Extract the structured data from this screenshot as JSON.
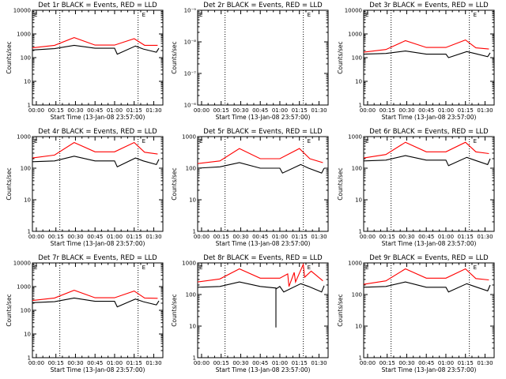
{
  "page": {
    "background": "#ffffff"
  },
  "colors": {
    "events": "#000000",
    "lld": "#ff0000",
    "frame": "#000000"
  },
  "chart_data": [
    {
      "type": "line",
      "title": "Det 1r BLACK = Events, RED = LLD",
      "xlabel": "Start Time (13-Jan-08 23:57:00)",
      "ylabel": "Counts/sec",
      "x_ticks": [
        "00:00",
        "00:15",
        "00:30",
        "00:45",
        "01:00",
        "01:15",
        "01:30"
      ],
      "x_range_min": [
        -3,
        97
      ],
      "y_scale": "log",
      "ylim": [
        1,
        10000
      ],
      "y_ticks": [
        "1",
        "10",
        "100",
        "1000",
        "10000"
      ],
      "dotted_lines_min": [
        18,
        78
      ],
      "marker": "E",
      "marker_x_min": 81,
      "series": [
        {
          "color": "#ff0000",
          "points": [
            [
              -3,
              260
            ],
            [
              14,
              330
            ],
            [
              29,
              700
            ],
            [
              45,
              340
            ],
            [
              60,
              340
            ],
            [
              75,
              630
            ],
            [
              83,
              330
            ],
            [
              93,
              330
            ]
          ]
        },
        {
          "color": "#000000",
          "points": [
            [
              -3,
              210
            ],
            [
              14,
              240
            ],
            [
              29,
              330
            ],
            [
              45,
              250
            ],
            [
              60,
              250
            ],
            [
              62,
              140
            ],
            [
              76,
              310
            ],
            [
              82,
              230
            ],
            [
              92,
              170
            ],
            [
              94,
              250
            ]
          ]
        }
      ]
    },
    {
      "type": "line",
      "title": "Det 2r BLACK = Events, RED = LLD",
      "xlabel": "Start Time (13-Jan-08 23:57:00)",
      "ylabel": "Counts/sec",
      "x_ticks": [
        "00:00",
        "00:15",
        "00:30",
        "00:45",
        "01:00",
        "01:15",
        "01:30"
      ],
      "x_range_min": [
        -3,
        97
      ],
      "y_scale": "log",
      "ylim": [
        1e-06,
        1e-09
      ],
      "y_ticks": [
        "10⁻⁶",
        "10⁻⁷",
        "10⁻⁸",
        "10⁻⁹"
      ],
      "dotted_lines_min": [
        18,
        78
      ],
      "marker": "E",
      "marker_x_min": 81,
      "series": []
    },
    {
      "type": "line",
      "title": "Det 3r BLACK = Events, RED = LLD",
      "xlabel": "Start Time (13-Jan-08 23:57:00)",
      "ylabel": "Counts/sec",
      "x_ticks": [
        "00:00",
        "00:15",
        "00:30",
        "00:45",
        "01:00",
        "01:15",
        "01:30"
      ],
      "x_range_min": [
        -3,
        97
      ],
      "y_scale": "log",
      "ylim": [
        1,
        10000
      ],
      "y_ticks": [
        "1",
        "10",
        "100",
        "1000",
        "10000"
      ],
      "dotted_lines_min": [
        18,
        78
      ],
      "marker": "E",
      "marker_x_min": 81,
      "series": [
        {
          "color": "#ff0000",
          "points": [
            [
              -3,
              170
            ],
            [
              14,
              220
            ],
            [
              29,
              520
            ],
            [
              45,
              270
            ],
            [
              60,
              270
            ],
            [
              75,
              560
            ],
            [
              83,
              260
            ],
            [
              93,
              230
            ]
          ]
        },
        {
          "color": "#000000",
          "points": [
            [
              -3,
              140
            ],
            [
              14,
              150
            ],
            [
              29,
              190
            ],
            [
              45,
              140
            ],
            [
              60,
              140
            ],
            [
              62,
              100
            ],
            [
              76,
              180
            ],
            [
              82,
              150
            ],
            [
              92,
              110
            ],
            [
              94,
              160
            ]
          ]
        }
      ]
    },
    {
      "type": "line",
      "title": "Det 4r BLACK = Events, RED = LLD",
      "xlabel": "Start Time (13-Jan-08 23:57:00)",
      "ylabel": "Counts/sec",
      "x_ticks": [
        "00:00",
        "00:15",
        "00:30",
        "00:45",
        "01:00",
        "01:15",
        "01:30"
      ],
      "x_range_min": [
        -3,
        97
      ],
      "y_scale": "log",
      "ylim": [
        1,
        1000
      ],
      "y_ticks": [
        "1",
        "10",
        "100",
        "1000"
      ],
      "dotted_lines_min": [
        18,
        78
      ],
      "marker": "E",
      "marker_x_min": 81,
      "series": [
        {
          "color": "#ff0000",
          "points": [
            [
              -3,
              210
            ],
            [
              14,
              260
            ],
            [
              29,
              650
            ],
            [
              45,
              330
            ],
            [
              60,
              330
            ],
            [
              75,
              650
            ],
            [
              83,
              320
            ],
            [
              93,
              280
            ]
          ]
        },
        {
          "color": "#000000",
          "points": [
            [
              -3,
              160
            ],
            [
              14,
              170
            ],
            [
              29,
              240
            ],
            [
              45,
              170
            ],
            [
              60,
              170
            ],
            [
              62,
              110
            ],
            [
              76,
              210
            ],
            [
              82,
              170
            ],
            [
              92,
              130
            ],
            [
              94,
              190
            ]
          ]
        }
      ]
    },
    {
      "type": "line",
      "title": "Det 5r BLACK = Events, RED = LLD",
      "xlabel": "Start Time (13-Jan-08 23:57:00)",
      "ylabel": "Counts/sec",
      "x_ticks": [
        "00:00",
        "00:15",
        "00:30",
        "00:45",
        "01:00",
        "01:15",
        "01:30"
      ],
      "x_range_min": [
        -3,
        97
      ],
      "y_scale": "log",
      "ylim": [
        1,
        1000
      ],
      "y_ticks": [
        "1",
        "10",
        "100",
        "1000"
      ],
      "dotted_lines_min": [
        18,
        78
      ],
      "marker": "E",
      "marker_x_min": 81,
      "series": [
        {
          "color": "#ff0000",
          "points": [
            [
              -3,
              140
            ],
            [
              14,
              170
            ],
            [
              29,
              420
            ],
            [
              45,
              200
            ],
            [
              60,
              200
            ],
            [
              75,
              420
            ],
            [
              83,
              200
            ],
            [
              93,
              150
            ]
          ]
        },
        {
          "color": "#000000",
          "points": [
            [
              -3,
              100
            ],
            [
              14,
              110
            ],
            [
              29,
              150
            ],
            [
              45,
              100
            ],
            [
              60,
              100
            ],
            [
              62,
              70
            ],
            [
              76,
              130
            ],
            [
              82,
              100
            ],
            [
              92,
              70
            ],
            [
              94,
              100
            ]
          ]
        }
      ]
    },
    {
      "type": "line",
      "title": "Det 6r BLACK = Events, RED = LLD",
      "xlabel": "Start Time (13-Jan-08 23:57:00)",
      "ylabel": "Counts/sec",
      "x_ticks": [
        "00:00",
        "00:15",
        "00:30",
        "00:45",
        "01:00",
        "01:15",
        "01:30"
      ],
      "x_range_min": [
        -3,
        97
      ],
      "y_scale": "log",
      "ylim": [
        1,
        1000
      ],
      "y_ticks": [
        "1",
        "10",
        "100",
        "1000"
      ],
      "dotted_lines_min": [
        18,
        78
      ],
      "marker": "E",
      "marker_x_min": 81,
      "series": [
        {
          "color": "#ff0000",
          "points": [
            [
              -3,
              210
            ],
            [
              14,
              270
            ],
            [
              29,
              660
            ],
            [
              45,
              330
            ],
            [
              60,
              330
            ],
            [
              75,
              660
            ],
            [
              83,
              330
            ],
            [
              93,
              290
            ]
          ]
        },
        {
          "color": "#000000",
          "points": [
            [
              -3,
              170
            ],
            [
              14,
              180
            ],
            [
              29,
              250
            ],
            [
              45,
              180
            ],
            [
              60,
              180
            ],
            [
              62,
              120
            ],
            [
              76,
              220
            ],
            [
              82,
              180
            ],
            [
              92,
              130
            ],
            [
              94,
              200
            ]
          ]
        }
      ]
    },
    {
      "type": "line",
      "title": "Det 7r BLACK = Events, RED = LLD",
      "xlabel": "Start Time (13-Jan-08 23:57:00)",
      "ylabel": "Counts/sec",
      "x_ticks": [
        "00:00",
        "00:15",
        "00:30",
        "00:45",
        "01:00",
        "01:15",
        "01:30"
      ],
      "x_range_min": [
        -3,
        97
      ],
      "y_scale": "log",
      "ylim": [
        1,
        10000
      ],
      "y_ticks": [
        "1",
        "10",
        "100",
        "1000",
        "10000"
      ],
      "dotted_lines_min": [
        18,
        78
      ],
      "marker": "E",
      "marker_x_min": 81,
      "series": [
        {
          "color": "#ff0000",
          "points": [
            [
              -3,
              260
            ],
            [
              14,
              330
            ],
            [
              29,
              700
            ],
            [
              45,
              340
            ],
            [
              60,
              340
            ],
            [
              75,
              650
            ],
            [
              83,
              330
            ],
            [
              93,
              320
            ]
          ]
        },
        {
          "color": "#000000",
          "points": [
            [
              -3,
              210
            ],
            [
              14,
              230
            ],
            [
              29,
              330
            ],
            [
              45,
              240
            ],
            [
              60,
              240
            ],
            [
              62,
              140
            ],
            [
              76,
              300
            ],
            [
              82,
              230
            ],
            [
              92,
              170
            ],
            [
              94,
              250
            ]
          ]
        }
      ]
    },
    {
      "type": "line",
      "title": "Det 8r BLACK = Events, RED = LLD",
      "xlabel": "Start Time (13-Jan-08 23:57:00)",
      "ylabel": "Counts/sec",
      "x_ticks": [
        "00:00",
        "00:15",
        "00:30",
        "00:45",
        "01:00",
        "01:15",
        "01:30"
      ],
      "x_range_min": [
        -3,
        97
      ],
      "y_scale": "log",
      "ylim": [
        1,
        1000
      ],
      "y_ticks": [
        "1",
        "10",
        "100",
        "1000"
      ],
      "dotted_lines_min": [
        18,
        78
      ],
      "marker": "E",
      "marker_x_min": 81,
      "series": [
        {
          "color": "#ff0000",
          "points": [
            [
              -3,
              250
            ],
            [
              14,
              310
            ],
            [
              29,
              650
            ],
            [
              45,
              330
            ],
            [
              60,
              330
            ],
            [
              66,
              450
            ],
            [
              67,
              180
            ],
            [
              71,
              500
            ],
            [
              72,
              250
            ],
            [
              78,
              900
            ],
            [
              79,
              350
            ],
            [
              84,
              550
            ],
            [
              93,
              270
            ]
          ]
        },
        {
          "color": "#000000",
          "points": [
            [
              -3,
              170
            ],
            [
              14,
              180
            ],
            [
              29,
              250
            ],
            [
              45,
              180
            ],
            [
              57,
              160
            ],
            [
              57,
              9
            ],
            [
              57,
              150
            ],
            [
              60,
              180
            ],
            [
              63,
              120
            ],
            [
              76,
              220
            ],
            [
              82,
              180
            ],
            [
              92,
              120
            ],
            [
              94,
              190
            ]
          ]
        }
      ]
    },
    {
      "type": "line",
      "title": "Det 9r BLACK = Events, RED = LLD",
      "xlabel": "Start Time (13-Jan-08 23:57:00)",
      "ylabel": "Counts/sec",
      "x_ticks": [
        "00:00",
        "00:15",
        "00:30",
        "00:45",
        "01:00",
        "01:15",
        "01:30"
      ],
      "x_range_min": [
        -3,
        97
      ],
      "y_scale": "log",
      "ylim": [
        1,
        1000
      ],
      "y_ticks": [
        "1",
        "10",
        "100",
        "1000"
      ],
      "dotted_lines_min": [
        18,
        78
      ],
      "marker": "E",
      "marker_x_min": 81,
      "series": [
        {
          "color": "#ff0000",
          "points": [
            [
              -3,
              210
            ],
            [
              14,
              270
            ],
            [
              29,
              650
            ],
            [
              45,
              330
            ],
            [
              60,
              330
            ],
            [
              75,
              650
            ],
            [
              83,
              320
            ],
            [
              93,
              290
            ]
          ]
        },
        {
          "color": "#000000",
          "points": [
            [
              -3,
              170
            ],
            [
              14,
              180
            ],
            [
              29,
              250
            ],
            [
              45,
              170
            ],
            [
              60,
              170
            ],
            [
              62,
              120
            ],
            [
              76,
              220
            ],
            [
              82,
              180
            ],
            [
              92,
              130
            ],
            [
              94,
              200
            ]
          ]
        }
      ]
    }
  ]
}
